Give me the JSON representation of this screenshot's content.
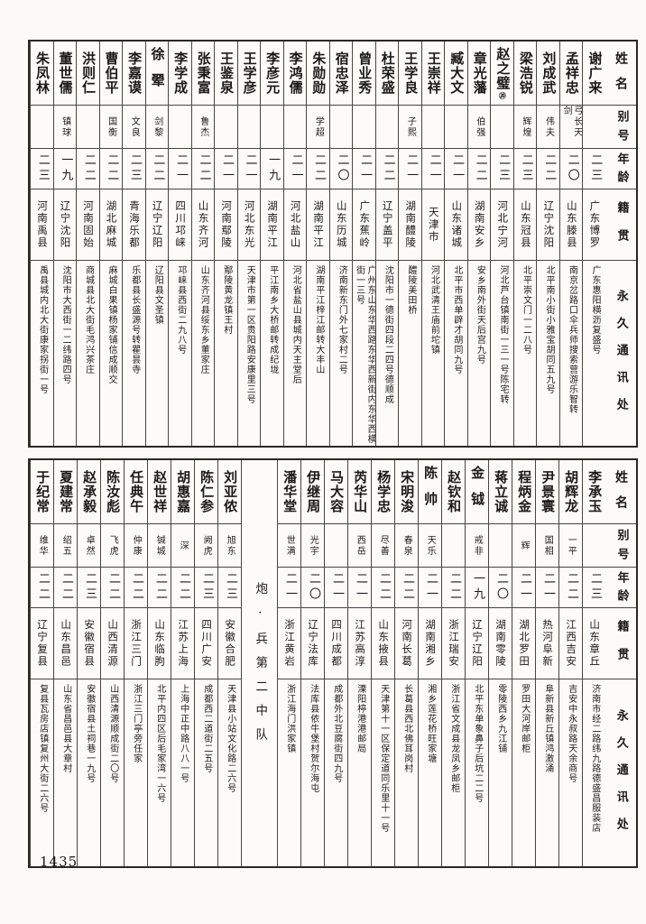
{
  "page_number": "1435",
  "headers": [
    "姓名",
    "别号",
    "年龄",
    "籍贯",
    "永久通讯处"
  ],
  "top_table": {
    "people_right_to_left": [
      {
        "name": "谢广来",
        "hao": "",
        "age": "二三",
        "native": "广东博罗",
        "address": "广东惠阳横沥复盛号"
      },
      {
        "name": "孟祥忠",
        "hao": "弓长天剑",
        "age": "二〇",
        "native": "山东滕县",
        "address": "南京岔路口伞兵师搜索营游乐智转"
      },
      {
        "name": "刘成武",
        "hao": "伟夫",
        "age": "二二",
        "native": "辽宁沈阳",
        "address": "北平南小街小雅宝胡同五九号"
      },
      {
        "name": "梁浩锐",
        "hao": "辉煌",
        "age": "二三",
        "native": "山东冠县",
        "address": "北平崇文门一二八号"
      },
      {
        "name": "赵之璧",
        "hao": "",
        "age": "二三",
        "native": "河北宁河",
        "address": "河北芦台镇南街一三一号陈宅转",
        "mark": "⑳"
      },
      {
        "name": "章光藩",
        "hao": "伯强",
        "age": "二二",
        "native": "湖南安乡",
        "address": "安乡南外街天后宫九号"
      },
      {
        "name": "臧大文",
        "hao": "",
        "age": "二一",
        "native": "山东诸城",
        "address": "北平市西单辟才胡同九号"
      },
      {
        "name": "王崇祥",
        "hao": "",
        "age": "二一",
        "native": "天津市",
        "address": "河北武清王庙前坨镇"
      },
      {
        "name": "王学良",
        "hao": "子熙",
        "age": "二一",
        "native": "湖南醴陵",
        "address": "醴陵美田桥"
      },
      {
        "name": "杜荣盛",
        "hao": "",
        "age": "二二",
        "native": "辽宁盖平",
        "address": "沈阳市一德街四段二四号德顺成"
      },
      {
        "name": "曾业秀",
        "hao": "",
        "age": "二一",
        "native": "广东蕉岭",
        "address": "广州东山东华西路东华西新街内东华西横街一三号"
      },
      {
        "name": "宿忠泽",
        "hao": "",
        "age": "二〇",
        "native": "山东历城",
        "address": "济南新东门外七家村二号"
      },
      {
        "name": "朱勋勋",
        "hao": "学超",
        "age": "二二",
        "native": "湖南平江",
        "address": "湖南平江梓江邮转大丰山"
      },
      {
        "name": "李鸿儒",
        "hao": "",
        "age": "二一",
        "native": "河北盐山",
        "address": "河北省盐山县城内天主堂后"
      },
      {
        "name": "李彦元",
        "hao": "",
        "age": "一九",
        "native": "湖南平江",
        "address": "平江南乡大桥邮转成纪垅"
      },
      {
        "name": "王学彦",
        "hao": "",
        "age": "二一",
        "native": "河北东光",
        "address": "天津市第一区贵阳路安康里三号"
      },
      {
        "name": "王鉴泉",
        "hao": "",
        "age": "二一",
        "native": "河南鄢陵",
        "address": "鄢陵黄龙镇王村"
      },
      {
        "name": "张秉富",
        "hao": "鲁杰",
        "age": "二二",
        "native": "山东齐河",
        "address": "山东齐河县绥东乡董家庄"
      },
      {
        "name": "李学成",
        "hao": "",
        "age": "二一",
        "native": "四川邛崃",
        "address": "邛崃县西街二九八号"
      },
      {
        "name": "徐翚",
        "hao": "剑黎",
        "age": "二二",
        "native": "辽宁辽阳",
        "address": "辽阳县文圣镇"
      },
      {
        "name": "李嘉谟",
        "hao": "文良",
        "age": "二三",
        "native": "青海乐都",
        "address": "乐都县长盛源号转瞿昙寺"
      },
      {
        "name": "曹伯平",
        "hao": "国衡",
        "age": "二二",
        "native": "湖北麻城",
        "address": "麻城白果镇杨家铺信成顺交"
      },
      {
        "name": "洪则仁",
        "hao": "",
        "age": "二二",
        "native": "河南固始",
        "address": "商城县北大街毛鸿兴茶庄"
      },
      {
        "name": "董世儒",
        "hao": "镇球",
        "age": "一九",
        "native": "辽宁沈阳",
        "address": "沈阳市大西街一二纬路四号"
      },
      {
        "name": "朱凤林",
        "hao": "",
        "age": "二三",
        "native": "河南禹县",
        "address": "禹县城内北大街康家拐街一号"
      }
    ]
  },
  "bottom_table": {
    "divider_label": "炮·兵第二中队",
    "people_right_of_divider": [
      {
        "name": "李承玉",
        "hao": "",
        "age": "二三",
        "native": "山东章丘",
        "address": "济南市经二路纬九路德盛昌服装店"
      },
      {
        "name": "胡辉龙",
        "hao": "一平",
        "age": "二二",
        "native": "江西吉安",
        "address": "吉安中永叔路天余商号"
      },
      {
        "name": "尹景寰",
        "hao": "国相",
        "age": "二一",
        "native": "热河阜新",
        "address": "阜新县新丘镇鸿激涌"
      },
      {
        "name": "程炳金",
        "hao": "辉",
        "age": "二一",
        "native": "湖北罗田",
        "address": "罗田大河岸邮柜"
      },
      {
        "name": "蒋立诚",
        "hao": "",
        "age": "二〇",
        "native": "湖南零陵",
        "address": "零陵西乡九江铺"
      },
      {
        "name": "金钺",
        "hao": "戒非",
        "age": "一九",
        "native": "辽宁辽阳",
        "address": "北平东单象鼻子后坑二二号"
      },
      {
        "name": "赵钦和",
        "hao": "",
        "age": "二二",
        "native": "浙江瑞安",
        "address": "浙江省文成县龙凤乡邮柜"
      },
      {
        "name": "陈帅",
        "hao": "天乐",
        "age": "二一",
        "native": "湖南湘乡",
        "address": "湘乡莲花桥旺家塘"
      },
      {
        "name": "宋明浚",
        "hao": "春泉",
        "age": "二二",
        "native": "河南长葛",
        "address": "长葛县西北佛耳岗村"
      },
      {
        "name": "杨学忠",
        "hao": "尽善",
        "age": "二二",
        "native": "山东掖县",
        "address": "天津第十一区保定道同乐里十一号"
      },
      {
        "name": "芮华山",
        "hao": "西岳",
        "age": "二一",
        "native": "江苏高淳",
        "address": "溧阳楟港港邮局"
      },
      {
        "name": "马大容",
        "hao": "",
        "age": "二一",
        "native": "四川成都",
        "address": "成都外北豆腐街四九号"
      },
      {
        "name": "伊继周",
        "hao": "光宇",
        "age": "二〇",
        "native": "辽宁法库",
        "address": "法库县依牛堡村贺尔海屯"
      },
      {
        "name": "潘华堂",
        "hao": "世满",
        "age": "二一",
        "native": "浙江黄岩",
        "address": "浙江海门洪家镇"
      }
    ],
    "people_left_of_divider": [
      {
        "name": "刘亚侬",
        "hao": "旭东",
        "age": "二三",
        "native": "安徽合肥",
        "address": "天津县小站文化路二六号"
      },
      {
        "name": "陈仁参",
        "hao": "阙虎",
        "age": "二三",
        "native": "四川广安",
        "address": "成都西二道街二五号"
      },
      {
        "name": "胡惠嘉",
        "hao": "深",
        "age": "二二",
        "native": "江苏上海",
        "address": "上海中正中路八八一号"
      },
      {
        "name": "赵世祥",
        "hao": "铖城",
        "age": "二二",
        "native": "山东临朐",
        "address": "北平内四区后毛家湾一六号"
      },
      {
        "name": "任典午",
        "hao": "仲康",
        "age": "二二",
        "native": "浙江三门",
        "address": "浙江三门亭旁任家"
      },
      {
        "name": "陈汝彪",
        "hao": "飞虎",
        "age": "二二",
        "native": "山西清源",
        "address": "山西清源顺成街二〇号"
      },
      {
        "name": "赵承毅",
        "hao": "卓然",
        "age": "二三",
        "native": "安徽宿县",
        "address": "安徽宿县土祠巷一九号"
      },
      {
        "name": "夏建常",
        "hao": "绍五",
        "age": "二二",
        "native": "山东昌邑",
        "address": "山东省昌邑县大章村"
      },
      {
        "name": "于纪常",
        "hao": "维华",
        "age": "二二",
        "native": "辽宁复县",
        "address": "复县瓦房店镇复州大街二六号"
      }
    ]
  }
}
